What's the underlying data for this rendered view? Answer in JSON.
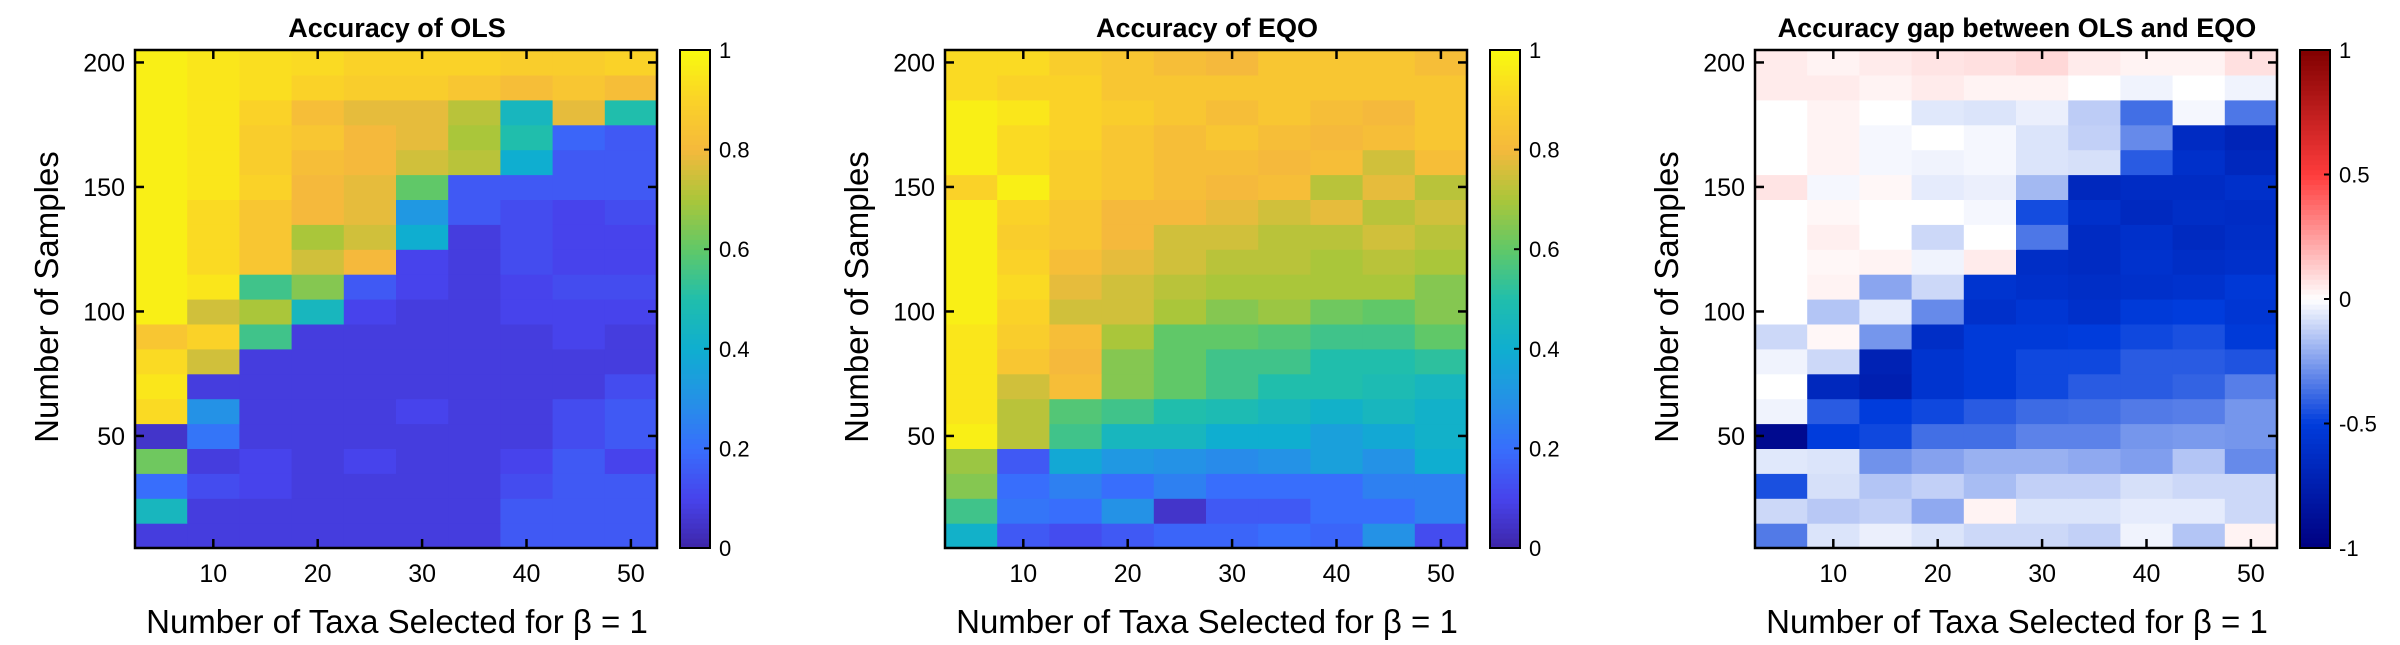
{
  "chart_data": [
    {
      "type": "heatmap",
      "title": "Accuracy of OLS",
      "xlabel": "Number of Taxa Selected for β = 1",
      "ylabel": "Number of Samples",
      "x": [
        5,
        10,
        15,
        20,
        25,
        30,
        35,
        40,
        45,
        50
      ],
      "y": [
        10,
        20,
        30,
        40,
        50,
        60,
        70,
        80,
        90,
        100,
        110,
        120,
        130,
        140,
        150,
        160,
        170,
        180,
        190,
        200
      ],
      "xlim": [
        2.5,
        52.5
      ],
      "ylim": [
        5,
        205
      ],
      "xticks": [
        "10",
        "20",
        "30",
        "40",
        "50"
      ],
      "yticks": [
        "50",
        "100",
        "150",
        "200"
      ],
      "colorbar": {
        "min": 0,
        "max": 1,
        "ticks": [
          "0",
          "0.2",
          "0.4",
          "0.6",
          "0.8",
          "1"
        ],
        "colormap": "parula"
      },
      "values": [
        [
          0.08,
          0.08,
          0.08,
          0.08,
          0.08,
          0.08,
          0.08,
          0.15,
          0.15,
          0.15
        ],
        [
          0.45,
          0.08,
          0.08,
          0.08,
          0.08,
          0.08,
          0.08,
          0.15,
          0.15,
          0.15
        ],
        [
          0.2,
          0.12,
          0.1,
          0.08,
          0.08,
          0.08,
          0.08,
          0.12,
          0.15,
          0.15
        ],
        [
          0.62,
          0.08,
          0.1,
          0.08,
          0.1,
          0.08,
          0.08,
          0.1,
          0.15,
          0.1
        ],
        [
          0.05,
          0.22,
          0.08,
          0.08,
          0.08,
          0.08,
          0.08,
          0.08,
          0.12,
          0.15
        ],
        [
          0.92,
          0.3,
          0.08,
          0.08,
          0.08,
          0.1,
          0.08,
          0.08,
          0.12,
          0.15
        ],
        [
          0.95,
          0.08,
          0.08,
          0.08,
          0.08,
          0.08,
          0.08,
          0.08,
          0.08,
          0.12
        ],
        [
          0.92,
          0.75,
          0.08,
          0.08,
          0.08,
          0.08,
          0.08,
          0.08,
          0.08,
          0.08
        ],
        [
          0.85,
          0.9,
          0.55,
          0.08,
          0.08,
          0.08,
          0.08,
          0.08,
          0.1,
          0.08
        ],
        [
          0.97,
          0.75,
          0.7,
          0.45,
          0.1,
          0.08,
          0.08,
          0.1,
          0.1,
          0.1
        ],
        [
          0.97,
          0.95,
          0.55,
          0.65,
          0.15,
          0.1,
          0.08,
          0.1,
          0.12,
          0.12
        ],
        [
          0.97,
          0.92,
          0.85,
          0.75,
          0.8,
          0.1,
          0.08,
          0.12,
          0.1,
          0.1
        ],
        [
          0.97,
          0.92,
          0.85,
          0.7,
          0.75,
          0.4,
          0.08,
          0.12,
          0.1,
          0.1
        ],
        [
          0.97,
          0.92,
          0.85,
          0.8,
          0.78,
          0.32,
          0.15,
          0.12,
          0.1,
          0.12
        ],
        [
          0.97,
          0.95,
          0.9,
          0.8,
          0.78,
          0.6,
          0.15,
          0.15,
          0.15,
          0.15
        ],
        [
          0.97,
          0.95,
          0.88,
          0.82,
          0.8,
          0.75,
          0.72,
          0.4,
          0.15,
          0.15
        ],
        [
          0.97,
          0.95,
          0.88,
          0.85,
          0.8,
          0.78,
          0.7,
          0.5,
          0.18,
          0.15
        ],
        [
          0.97,
          0.95,
          0.9,
          0.82,
          0.78,
          0.78,
          0.72,
          0.45,
          0.78,
          0.5
        ],
        [
          0.97,
          0.95,
          0.93,
          0.9,
          0.88,
          0.88,
          0.85,
          0.82,
          0.85,
          0.82
        ],
        [
          0.97,
          0.95,
          0.93,
          0.92,
          0.9,
          0.9,
          0.9,
          0.88,
          0.88,
          0.9
        ]
      ]
    },
    {
      "type": "heatmap",
      "title": "Accuracy of EQO",
      "xlabel": "Number of Taxa Selected for β = 1",
      "ylabel": "Number of Samples",
      "x": [
        5,
        10,
        15,
        20,
        25,
        30,
        35,
        40,
        45,
        50
      ],
      "y": [
        10,
        20,
        30,
        40,
        50,
        60,
        70,
        80,
        90,
        100,
        110,
        120,
        130,
        140,
        150,
        160,
        170,
        180,
        190,
        200
      ],
      "xlim": [
        2.5,
        52.5
      ],
      "ylim": [
        5,
        205
      ],
      "xticks": [
        "10",
        "20",
        "30",
        "40",
        "50"
      ],
      "yticks": [
        "50",
        "100",
        "150",
        "200"
      ],
      "colorbar": {
        "min": 0,
        "max": 1,
        "ticks": [
          "0",
          "0.2",
          "0.4",
          "0.6",
          "0.8",
          "1"
        ],
        "colormap": "parula"
      },
      "values": [
        [
          0.42,
          0.15,
          0.12,
          0.15,
          0.18,
          0.18,
          0.2,
          0.18,
          0.3,
          0.12
        ],
        [
          0.55,
          0.22,
          0.2,
          0.3,
          0.05,
          0.15,
          0.15,
          0.2,
          0.2,
          0.25
        ],
        [
          0.65,
          0.2,
          0.25,
          0.2,
          0.25,
          0.2,
          0.2,
          0.2,
          0.25,
          0.25
        ],
        [
          0.68,
          0.15,
          0.38,
          0.32,
          0.3,
          0.28,
          0.3,
          0.35,
          0.3,
          0.4
        ],
        [
          0.97,
          0.72,
          0.55,
          0.45,
          0.45,
          0.4,
          0.4,
          0.35,
          0.38,
          0.42
        ],
        [
          0.95,
          0.72,
          0.58,
          0.55,
          0.5,
          0.48,
          0.45,
          0.42,
          0.45,
          0.42
        ],
        [
          0.95,
          0.75,
          0.82,
          0.65,
          0.6,
          0.55,
          0.5,
          0.5,
          0.48,
          0.45
        ],
        [
          0.95,
          0.85,
          0.8,
          0.65,
          0.6,
          0.55,
          0.55,
          0.5,
          0.5,
          0.52
        ],
        [
          0.95,
          0.88,
          0.82,
          0.7,
          0.6,
          0.6,
          0.58,
          0.55,
          0.55,
          0.6
        ],
        [
          0.97,
          0.9,
          0.75,
          0.75,
          0.7,
          0.65,
          0.68,
          0.62,
          0.6,
          0.65
        ],
        [
          0.97,
          0.92,
          0.78,
          0.75,
          0.72,
          0.7,
          0.7,
          0.7,
          0.7,
          0.65
        ],
        [
          0.97,
          0.9,
          0.82,
          0.78,
          0.75,
          0.72,
          0.72,
          0.7,
          0.72,
          0.7
        ],
        [
          0.97,
          0.88,
          0.85,
          0.8,
          0.75,
          0.75,
          0.72,
          0.72,
          0.75,
          0.72
        ],
        [
          0.97,
          0.9,
          0.85,
          0.8,
          0.8,
          0.78,
          0.75,
          0.78,
          0.72,
          0.75
        ],
        [
          0.9,
          0.97,
          0.88,
          0.85,
          0.82,
          0.8,
          0.82,
          0.72,
          0.78,
          0.72
        ],
        [
          0.97,
          0.92,
          0.88,
          0.85,
          0.82,
          0.82,
          0.8,
          0.82,
          0.75,
          0.82
        ],
        [
          0.97,
          0.92,
          0.9,
          0.85,
          0.82,
          0.85,
          0.82,
          0.8,
          0.82,
          0.85
        ],
        [
          0.97,
          0.95,
          0.9,
          0.88,
          0.85,
          0.82,
          0.85,
          0.82,
          0.8,
          0.85
        ],
        [
          0.92,
          0.9,
          0.9,
          0.85,
          0.85,
          0.85,
          0.85,
          0.85,
          0.85,
          0.85
        ],
        [
          0.92,
          0.92,
          0.88,
          0.85,
          0.82,
          0.8,
          0.85,
          0.85,
          0.85,
          0.82
        ]
      ]
    },
    {
      "type": "heatmap",
      "title": "Accuracy gap between OLS and EQO",
      "xlabel": "Number of Taxa Selected for β = 1",
      "ylabel": "Number of Samples",
      "x": [
        5,
        10,
        15,
        20,
        25,
        30,
        35,
        40,
        45,
        50
      ],
      "y": [
        10,
        20,
        30,
        40,
        50,
        60,
        70,
        80,
        90,
        100,
        110,
        120,
        130,
        140,
        150,
        160,
        170,
        180,
        190,
        200
      ],
      "xlim": [
        2.5,
        52.5
      ],
      "ylim": [
        5,
        205
      ],
      "xticks": [
        "10",
        "20",
        "30",
        "40",
        "50"
      ],
      "yticks": [
        "50",
        "100",
        "150",
        "200"
      ],
      "colorbar": {
        "min": -1,
        "max": 1,
        "ticks": [
          "-1",
          "-0.5",
          "0",
          "0.5",
          "1"
        ],
        "colormap": "blue-white-red"
      },
      "values": [
        [
          -0.34,
          -0.07,
          -0.04,
          -0.07,
          -0.1,
          -0.1,
          -0.12,
          -0.03,
          -0.15,
          0.03
        ],
        [
          -0.1,
          -0.14,
          -0.12,
          -0.22,
          0.03,
          -0.07,
          -0.07,
          -0.05,
          -0.05,
          -0.1
        ],
        [
          -0.45,
          -0.08,
          -0.15,
          -0.12,
          -0.17,
          -0.12,
          -0.12,
          -0.08,
          -0.1,
          -0.1
        ],
        [
          -0.06,
          -0.07,
          -0.28,
          -0.24,
          -0.2,
          -0.2,
          -0.22,
          -0.25,
          -0.15,
          -0.3
        ],
        [
          -0.92,
          -0.5,
          -0.47,
          -0.37,
          -0.37,
          -0.32,
          -0.32,
          -0.27,
          -0.26,
          -0.27
        ],
        [
          -0.03,
          -0.42,
          -0.5,
          -0.47,
          -0.42,
          -0.38,
          -0.37,
          -0.34,
          -0.33,
          -0.27
        ],
        [
          0.0,
          -0.67,
          -0.74,
          -0.57,
          -0.52,
          -0.47,
          -0.42,
          -0.42,
          -0.4,
          -0.33
        ],
        [
          -0.03,
          -0.1,
          -0.72,
          -0.57,
          -0.52,
          -0.47,
          -0.47,
          -0.42,
          -0.42,
          -0.44
        ],
        [
          -0.1,
          0.02,
          -0.27,
          -0.62,
          -0.52,
          -0.52,
          -0.5,
          -0.47,
          -0.45,
          -0.52
        ],
        [
          0.0,
          -0.15,
          -0.05,
          -0.3,
          -0.6,
          -0.55,
          -0.6,
          -0.52,
          -0.5,
          -0.55
        ],
        [
          0.0,
          0.03,
          -0.23,
          -0.1,
          -0.57,
          -0.6,
          -0.62,
          -0.6,
          -0.58,
          -0.53
        ],
        [
          0.0,
          0.02,
          0.03,
          -0.03,
          0.05,
          -0.62,
          -0.64,
          -0.58,
          -0.62,
          -0.6
        ],
        [
          0.0,
          0.04,
          0.0,
          -0.1,
          0.0,
          -0.35,
          -0.64,
          -0.6,
          -0.65,
          -0.62
        ],
        [
          0.0,
          0.02,
          0.0,
          0.0,
          -0.02,
          -0.46,
          -0.6,
          -0.66,
          -0.62,
          -0.63
        ],
        [
          0.07,
          -0.02,
          0.02,
          -0.05,
          -0.04,
          -0.18,
          -0.67,
          -0.63,
          -0.63,
          -0.6
        ],
        [
          0.0,
          0.03,
          -0.02,
          -0.03,
          -0.02,
          -0.07,
          -0.08,
          -0.42,
          -0.6,
          -0.67
        ],
        [
          0.0,
          0.03,
          -0.02,
          0.0,
          -0.02,
          -0.07,
          -0.12,
          -0.3,
          -0.64,
          -0.7
        ],
        [
          0.0,
          0.03,
          0.0,
          -0.06,
          -0.07,
          -0.04,
          -0.13,
          -0.37,
          -0.02,
          -0.35
        ],
        [
          0.05,
          0.05,
          0.03,
          0.05,
          0.03,
          0.03,
          0.0,
          -0.03,
          0.0,
          -0.03
        ],
        [
          0.05,
          0.03,
          0.05,
          0.07,
          0.08,
          0.1,
          0.05,
          0.03,
          0.03,
          0.08
        ]
      ]
    }
  ]
}
